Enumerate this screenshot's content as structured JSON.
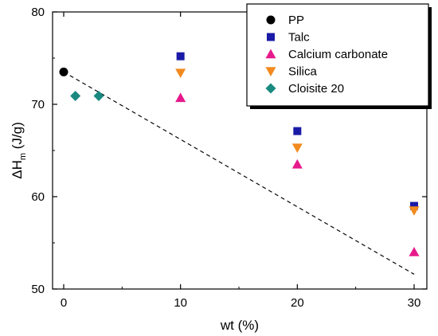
{
  "chart_data": {
    "type": "scatter",
    "xlabel": "wt (%)",
    "ylabel_main": "ΔH",
    "ylabel_sub": "m",
    "ylabel_unit": " (J/g)",
    "xlim": [
      -1,
      31
    ],
    "ylim": [
      50,
      80
    ],
    "x_ticks": [
      0,
      10,
      20,
      30
    ],
    "y_ticks": [
      50,
      60,
      70,
      80
    ],
    "x_tick_labels": [
      "0",
      "10",
      "20",
      "30"
    ],
    "y_tick_labels": [
      "50",
      "60",
      "70",
      "80"
    ],
    "legend_position": "top-right",
    "grid": false,
    "series": [
      {
        "name": "PP",
        "marker": "circle",
        "color": "#000000",
        "points": [
          [
            0,
            73.5
          ]
        ]
      },
      {
        "name": "Talc",
        "marker": "square",
        "color": "#1a1aa6",
        "points": [
          [
            10,
            75.2
          ],
          [
            20,
            67.1
          ],
          [
            30,
            59.0
          ]
        ]
      },
      {
        "name": "Calcium carbonate",
        "marker": "triangle-up",
        "color": "#e6198c",
        "points": [
          [
            10,
            70.7
          ],
          [
            20,
            63.5
          ],
          [
            30,
            54.0
          ]
        ]
      },
      {
        "name": "Silica",
        "marker": "triangle-down",
        "color": "#f28a1e",
        "points": [
          [
            10,
            73.4
          ],
          [
            20,
            65.3
          ],
          [
            30,
            58.5
          ]
        ]
      },
      {
        "name": "Cloisite 20",
        "marker": "diamond",
        "color": "#1a8a80",
        "points": [
          [
            1,
            70.9
          ],
          [
            3,
            70.9
          ]
        ]
      }
    ],
    "trend_line": {
      "style": "dashed",
      "points": [
        [
          0,
          73.5
        ],
        [
          30,
          51.6
        ]
      ]
    }
  }
}
